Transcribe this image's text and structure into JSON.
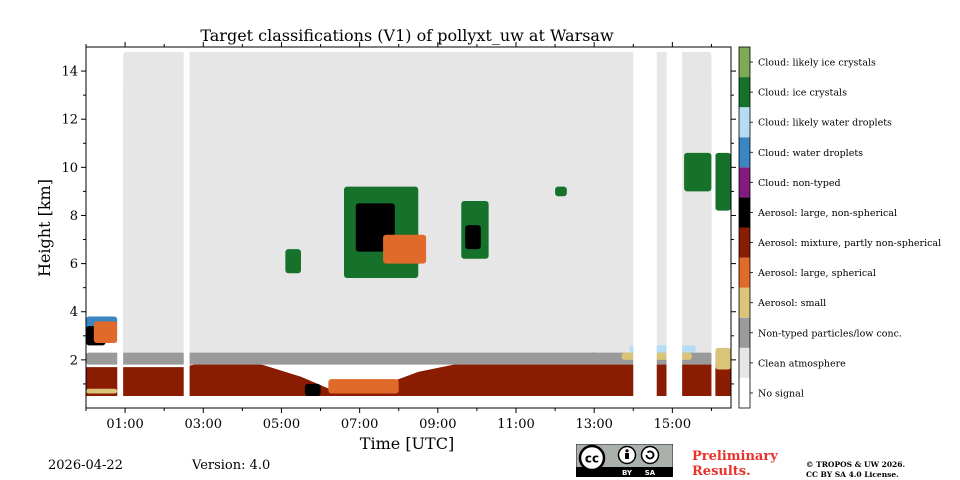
{
  "chart_data": {
    "type": "heatmap",
    "title": "Target classifications (V1) of pollyxt_uw at Warsaw",
    "xlabel": "Time [UTC]",
    "ylabel": "Height [km]",
    "xlim": [
      0,
      16.5
    ],
    "ylim": [
      0,
      15
    ],
    "x_ticks": [
      1,
      3,
      5,
      7,
      9,
      11,
      13,
      15
    ],
    "x_tick_labels": [
      "01:00",
      "03:00",
      "05:00",
      "07:00",
      "09:00",
      "11:00",
      "13:00",
      "15:00"
    ],
    "y_ticks": [
      2,
      4,
      6,
      8,
      10,
      12,
      14
    ],
    "y_tick_labels": [
      "2",
      "4",
      "6",
      "8",
      "10",
      "12",
      "14"
    ],
    "classes": [
      {
        "label": "No signal",
        "color": "#ffffff"
      },
      {
        "label": "Clean atmosphere",
        "color": "#e6e6e6"
      },
      {
        "label": "Non-typed particles/low conc.",
        "color": "#9a9a9a"
      },
      {
        "label": "Aerosol: small",
        "color": "#d9c477"
      },
      {
        "label": "Aerosol: large, spherical",
        "color": "#e06a2a"
      },
      {
        "label": "Aerosol: mixture, partly non-spherical",
        "color": "#8a1c02"
      },
      {
        "label": "Aerosol: large, non-spherical",
        "color": "#000000"
      },
      {
        "label": "Cloud: non-typed",
        "color": "#84197f"
      },
      {
        "label": "Cloud: water droplets",
        "color": "#3a86c3"
      },
      {
        "label": "Cloud: likely water droplets",
        "color": "#b6dcf5"
      },
      {
        "label": "Cloud: ice crystals",
        "color": "#16722b"
      },
      {
        "label": "Cloud: likely ice crystals",
        "color": "#7ea957"
      }
    ],
    "data_gaps_hours": [
      [
        0.8,
        0.95
      ],
      [
        2.5,
        2.65
      ],
      [
        14.0,
        14.6
      ],
      [
        14.85,
        15.25
      ],
      [
        16.0,
        16.1
      ]
    ],
    "regions": [
      {
        "class": "Aerosol: mixture, partly non-spherical",
        "x": [
          0.0,
          16.5
        ],
        "y_bottom": 0.5,
        "y_top_profile": [
          [
            0,
            1.7
          ],
          [
            2.5,
            1.7
          ],
          [
            3,
            1.9
          ],
          [
            4.5,
            1.8
          ],
          [
            5.5,
            1.3
          ],
          [
            6.5,
            0.6
          ],
          [
            7.5,
            0.9
          ],
          [
            8.5,
            1.5
          ],
          [
            10,
            2.0
          ],
          [
            12,
            2.1
          ],
          [
            13,
            2.3
          ],
          [
            14,
            2.0
          ],
          [
            15.5,
            2.0
          ],
          [
            16.5,
            1.8
          ]
        ]
      },
      {
        "class": "Non-typed particles/low conc.",
        "x": [
          0.0,
          16.5
        ],
        "y_range": [
          1.8,
          2.3
        ]
      },
      {
        "class": "Aerosol: small",
        "x": [
          0.0,
          0.8
        ],
        "y_range": [
          0.6,
          0.8
        ]
      },
      {
        "class": "Aerosol: small",
        "x": [
          16.1,
          16.5
        ],
        "y_range": [
          1.6,
          2.5
        ]
      },
      {
        "class": "Aerosol: small",
        "x": [
          13.7,
          15.5
        ],
        "y_range": [
          2.0,
          2.3
        ]
      },
      {
        "class": "Cloud: likely water droplets",
        "x": [
          13.9,
          15.6
        ],
        "y_range": [
          2.3,
          2.6
        ]
      },
      {
        "class": "Aerosol: large, non-spherical",
        "x": [
          5.6,
          6.0
        ],
        "y_range": [
          0.5,
          1.0
        ]
      },
      {
        "class": "Aerosol: large, spherical",
        "x": [
          6.2,
          8.0
        ],
        "y_range": [
          0.6,
          1.2
        ]
      },
      {
        "class": "Non-typed particles/low conc.",
        "x": [
          0.95,
          16.0
        ],
        "y_range": [
          2.3,
          13.5
        ]
      },
      {
        "class": "Clean atmosphere",
        "x": [
          0.95,
          16.0
        ],
        "y_range": [
          2.3,
          14.8
        ]
      },
      {
        "class": "Cloud: water droplets",
        "x": [
          0.0,
          0.8
        ],
        "y_range": [
          3.3,
          3.8
        ]
      },
      {
        "class": "Aerosol: large, non-spherical",
        "x": [
          0.0,
          0.5
        ],
        "y_range": [
          2.6,
          3.4
        ]
      },
      {
        "class": "Aerosol: large, spherical",
        "x": [
          0.2,
          0.8
        ],
        "y_range": [
          2.7,
          3.6
        ]
      },
      {
        "class": "Cloud: ice crystals",
        "x": [
          5.1,
          5.5
        ],
        "y_range": [
          5.6,
          6.6
        ]
      },
      {
        "class": "Cloud: ice crystals",
        "x": [
          6.6,
          8.5
        ],
        "y_range": [
          5.4,
          9.2
        ]
      },
      {
        "class": "Aerosol: large, non-spherical",
        "x": [
          6.9,
          7.9
        ],
        "y_range": [
          6.5,
          8.5
        ]
      },
      {
        "class": "Aerosol: large, spherical",
        "x": [
          7.6,
          8.7
        ],
        "y_range": [
          6.0,
          7.2
        ]
      },
      {
        "class": "Cloud: ice crystals",
        "x": [
          9.6,
          10.3
        ],
        "y_range": [
          6.2,
          8.6
        ]
      },
      {
        "class": "Aerosol: large, non-spherical",
        "x": [
          9.7,
          10.1
        ],
        "y_range": [
          6.6,
          7.6
        ]
      },
      {
        "class": "Cloud: ice crystals",
        "x": [
          12.0,
          12.3
        ],
        "y_range": [
          8.8,
          9.2
        ]
      },
      {
        "class": "Cloud: ice crystals",
        "x": [
          15.3,
          16.0
        ],
        "y_range": [
          9.0,
          10.6
        ]
      },
      {
        "class": "Cloud: ice crystals",
        "x": [
          16.1,
          16.5
        ],
        "y_range": [
          8.2,
          10.6
        ]
      }
    ],
    "legend_position": "right (colorbar)"
  },
  "footer": {
    "date": "2026-04-22",
    "version": "Version: 4.0",
    "license_badge": {
      "cc": "cc",
      "by": "BY",
      "sa": "SA"
    },
    "preliminary_line1": "Preliminary",
    "preliminary_line2": "Results.",
    "copyright_line1": "© TROPOS & UW 2026.",
    "copyright_line2": "CC BY SA 4.0 License."
  }
}
